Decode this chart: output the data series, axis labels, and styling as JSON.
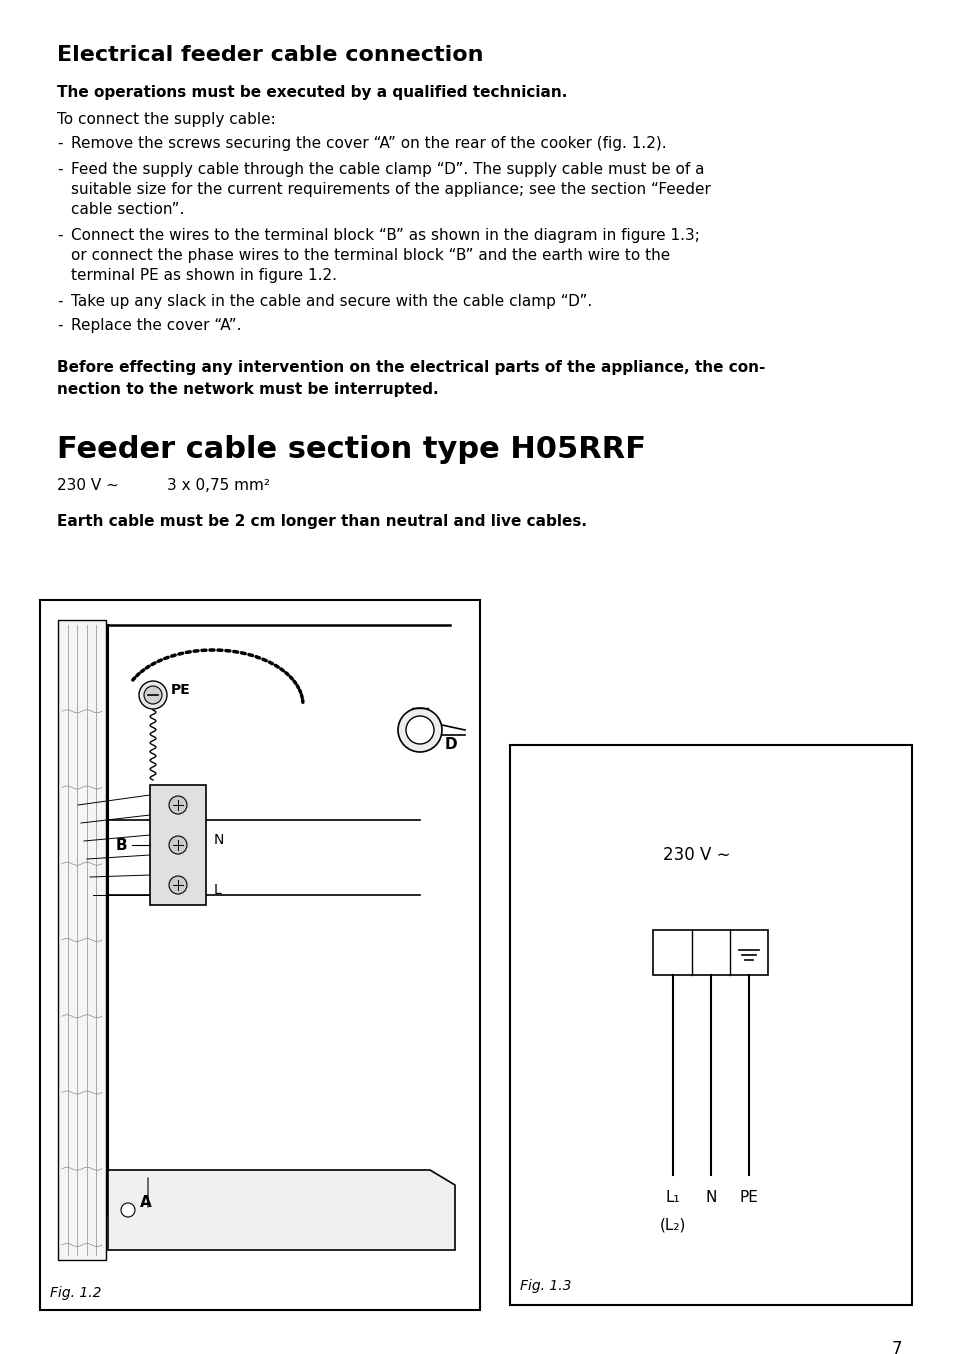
{
  "title": "Electrical feeder cable connection",
  "subtitle_bold": "The operations must be executed by a qualified technician.",
  "intro": "To connect the supply cable:",
  "bullet1": "Remove the screws securing the cover “A” on the rear of the cooker (fig. 1.2).",
  "bullet2a": "Feed the supply cable through the cable clamp “D”. The supply cable must be of a",
  "bullet2b": "suitable size for the current requirements of the appliance; see the section “Feeder",
  "bullet2c": "cable section”.",
  "bullet3a": "Connect the wires to the terminal block “B” as shown in the diagram in figure 1.3;",
  "bullet3b": "or connect the phase wires to the terminal block “B” and the earth wire to the",
  "bullet3c": "terminal PE as shown in figure 1.2.",
  "bullet4": "Take up any slack in the cable and secure with the cable clamp “D”.",
  "bullet5": "Replace the cover “A”.",
  "warning1": "Before effecting any intervention on the electrical parts of the appliance, the con-",
  "warning2": "nection to the network must be interrupted.",
  "section_title": "Feeder cable section type H05RRF",
  "spec_voltage": "230 V ∼",
  "spec_cable": "3 x 0,75 mm²",
  "earth_note": "Earth cable must be 2 cm longer than neutral and live cables.",
  "fig12_label": "Fig. 1.2",
  "fig13_label": "Fig. 1.3",
  "fig13_voltage": "230 V ∼",
  "page_number": "7",
  "bg_color": "#ffffff"
}
